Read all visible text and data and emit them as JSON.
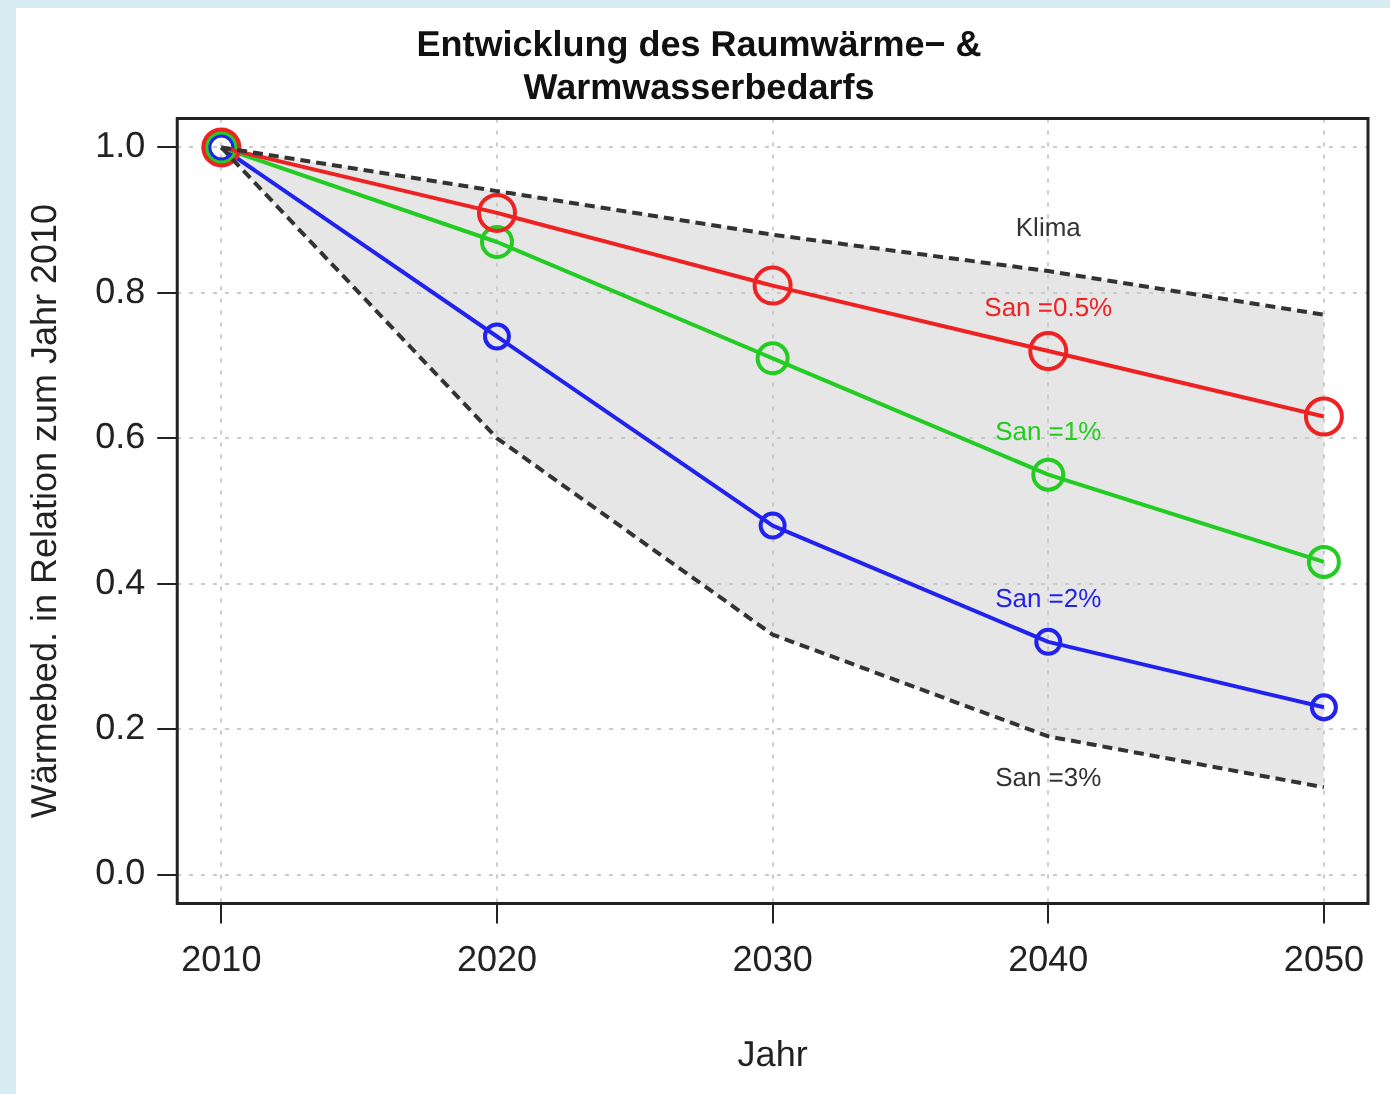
{
  "chart_data": {
    "type": "line",
    "title": "Entwicklung des Raumwärme− &\nWarmwasserbedarfs",
    "xlabel": "Jahr",
    "ylabel": "Wärmebed. in Relation zum Jahr 2010",
    "x": [
      2010,
      2020,
      2030,
      2040,
      2050
    ],
    "xlim": [
      2008.4,
      2051.6
    ],
    "xticks": [
      2010,
      2020,
      2030,
      2040,
      2050
    ],
    "ylim": [
      -0.04,
      1.04
    ],
    "yticks": [
      {
        "value": 0,
        "label": "0.0"
      },
      0.2,
      0.4,
      0.6,
      0.8,
      {
        "value": 1,
        "label": "1.0"
      }
    ],
    "grid": true,
    "legend": false,
    "series": [
      {
        "name": "Klima",
        "color": "#333333",
        "line_style": "dashed",
        "marker": "none",
        "values": [
          1.0,
          0.94,
          0.88,
          0.83,
          0.77
        ]
      },
      {
        "name": "San =3%",
        "color": "#333333",
        "line_style": "dashed",
        "marker": "none",
        "values": [
          1.0,
          0.6,
          0.33,
          0.19,
          0.12
        ],
        "lower": [
          1.0,
          0.6,
          0.33,
          0.19,
          0.12
        ],
        "upper": [
          1.0,
          0.94,
          0.88,
          0.83,
          0.77
        ]
      },
      {
        "name": "San =0.5%",
        "color": "#ee2222",
        "line_style": "solid",
        "marker": "circle",
        "values": [
          1.0,
          0.91,
          0.81,
          0.72,
          0.63
        ]
      },
      {
        "name": "San =1%",
        "color": "#22cc22",
        "line_style": "solid",
        "marker": "circle",
        "values": [
          1.0,
          0.87,
          0.71,
          0.55,
          0.43
        ]
      },
      {
        "name": "San =2%",
        "color": "#2222ee",
        "line_style": "solid",
        "marker": "circle",
        "values": [
          1.0,
          0.74,
          0.48,
          0.32,
          0.23
        ]
      }
    ]
  }
}
